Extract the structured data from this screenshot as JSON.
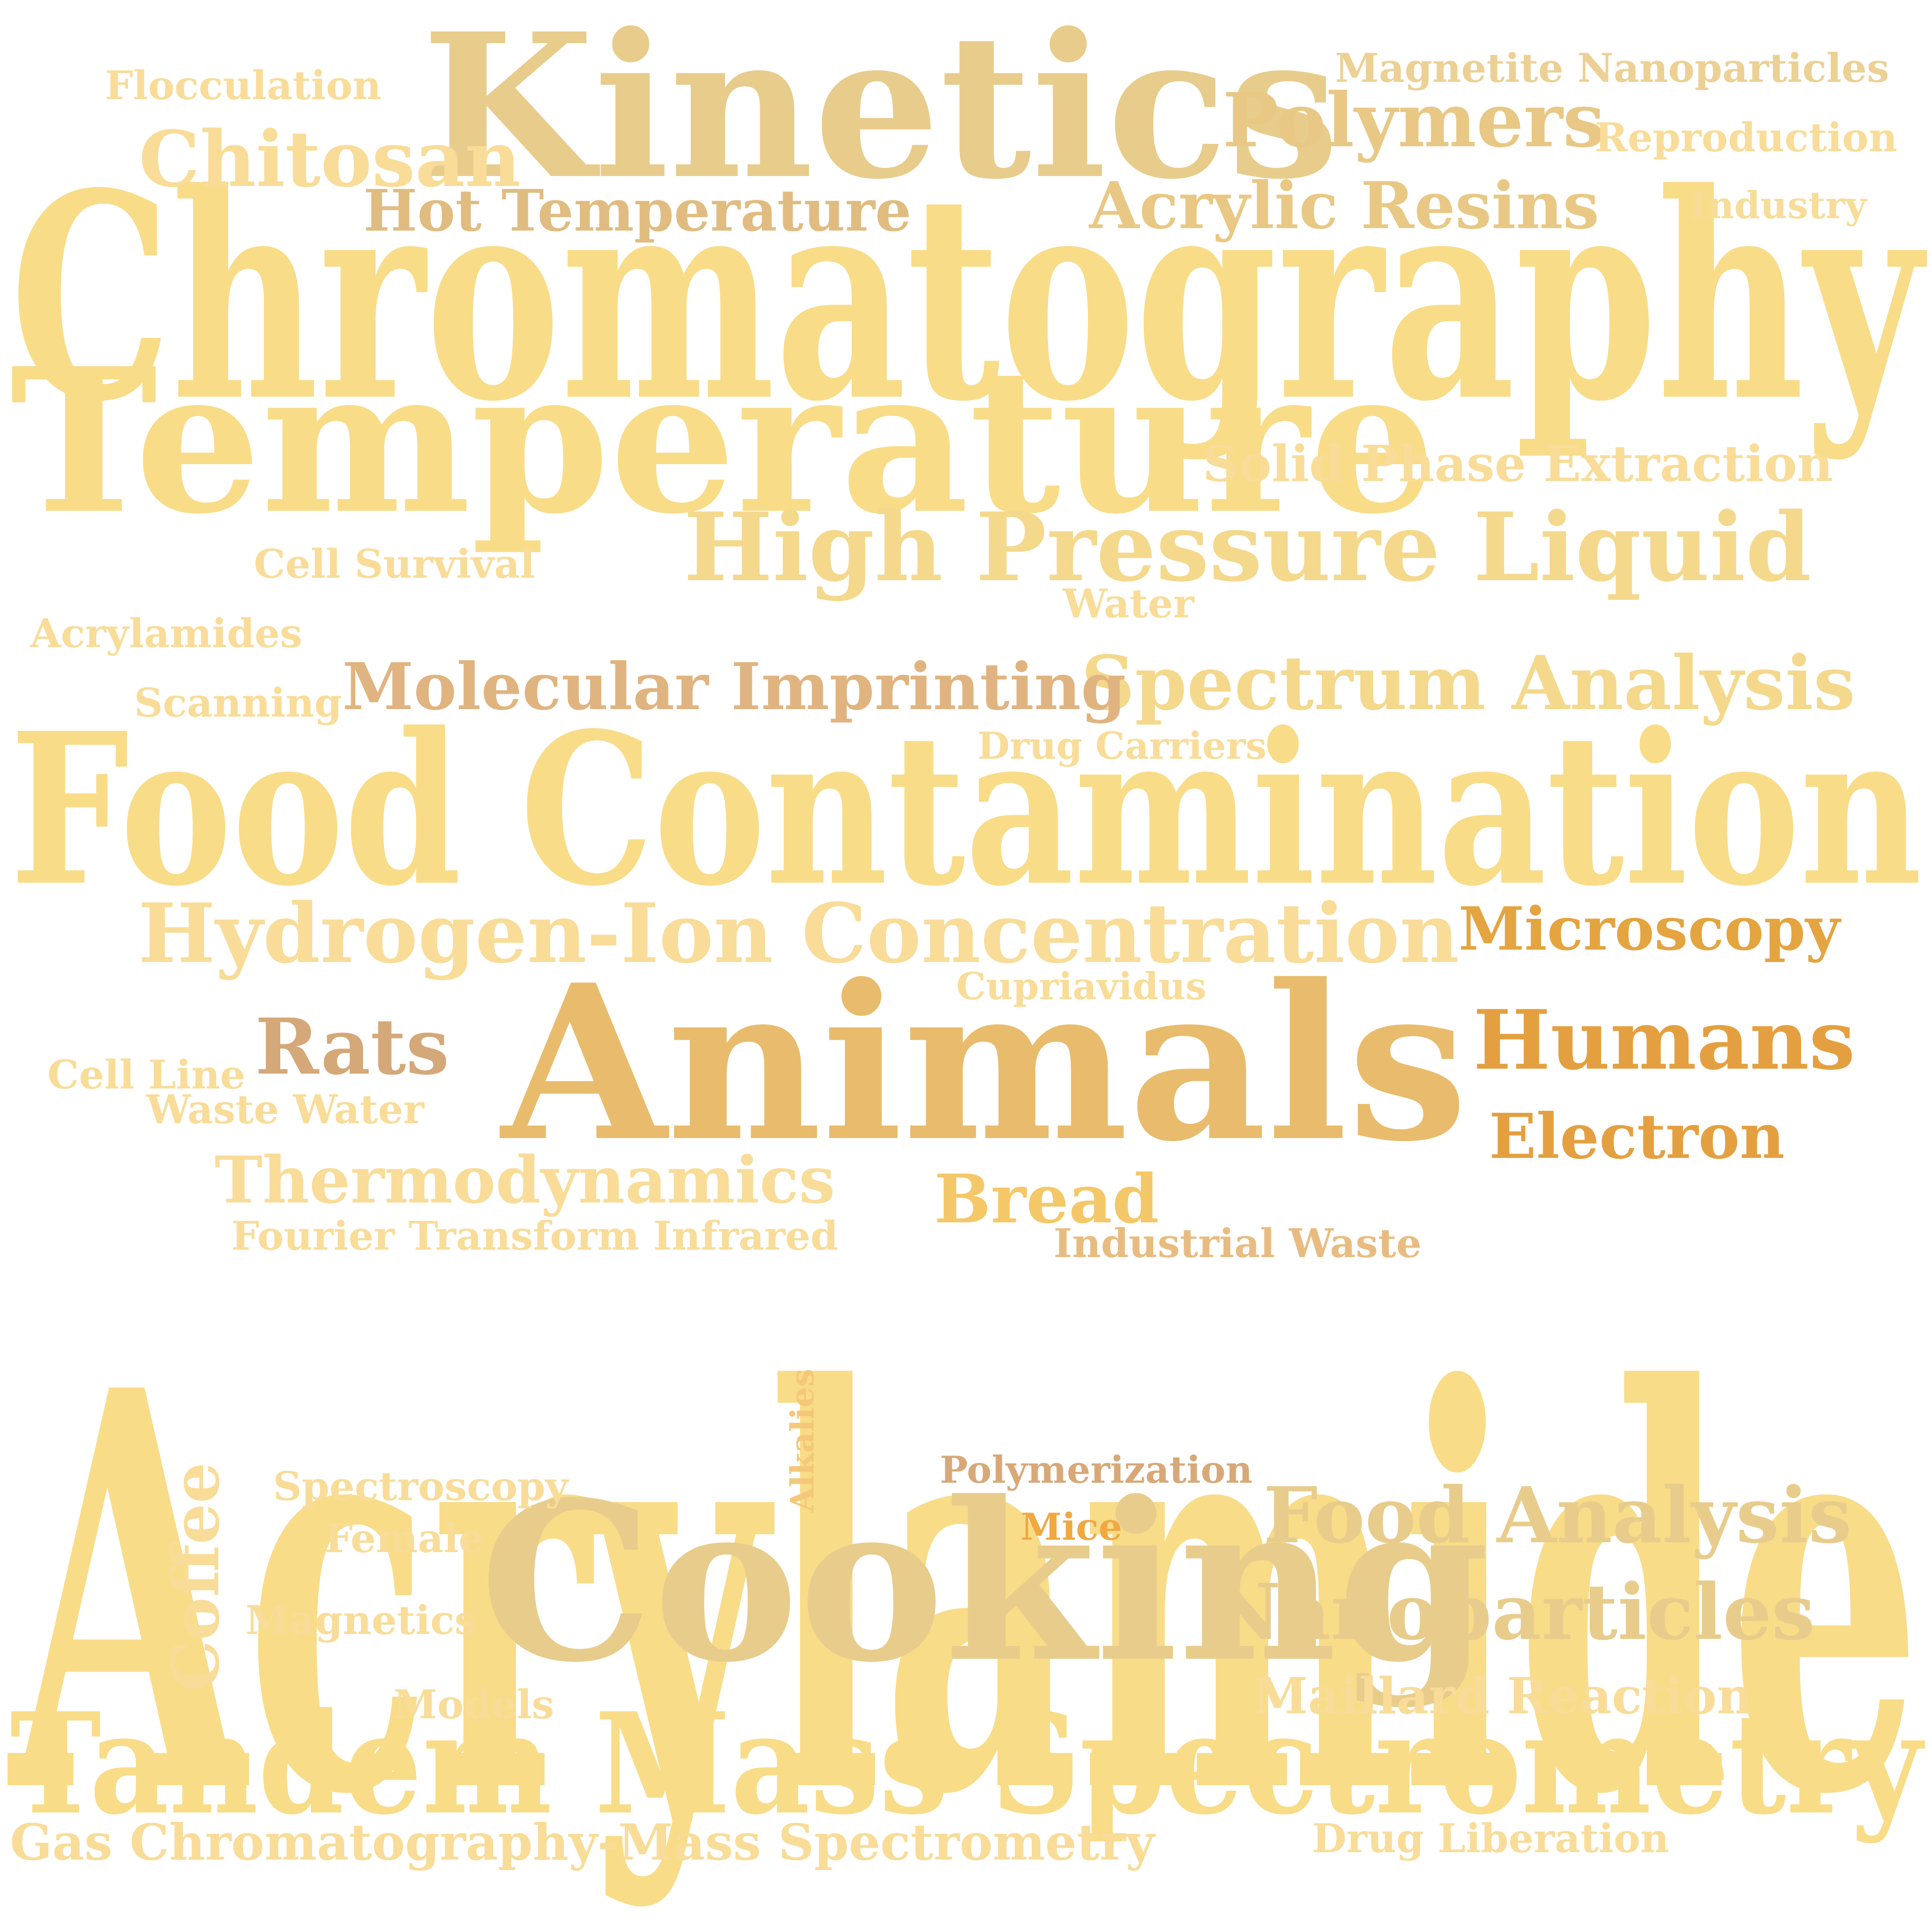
{
  "word_cloud": {
    "words": [
      {
        "text": "Acrylamide",
        "color": "#f8dc88",
        "weight": 1.0
      },
      {
        "text": "Chromatography",
        "color": "#f8dc88",
        "weight": 0.92
      },
      {
        "text": "Food Contamination",
        "color": "#f8dc88",
        "weight": 0.76
      },
      {
        "text": "Temperature",
        "color": "#f8dc88",
        "weight": 0.74
      },
      {
        "text": "Tandem Mass Spectrometry",
        "color": "#f8dc88",
        "weight": 0.66
      },
      {
        "text": "Kinetics",
        "color": "#e8cc8c",
        "weight": 0.7
      },
      {
        "text": "Animals",
        "color": "#e8bc6c",
        "weight": 0.72
      },
      {
        "text": "Cooking",
        "color": "#e8cc8c",
        "weight": 0.74
      },
      {
        "text": "High Pressure Liquid",
        "color": "#f4d88c",
        "weight": 0.42
      },
      {
        "text": "Hydrogen-Ion Concentration",
        "color": "#f8dc98",
        "weight": 0.38
      },
      {
        "text": "Spectrum Analysis",
        "color": "#f4d88c",
        "weight": 0.34
      },
      {
        "text": "Molecular Imprinting",
        "color": "#e0b480",
        "weight": 0.3
      },
      {
        "text": "Polymers",
        "color": "#e8c884",
        "weight": 0.34
      },
      {
        "text": "Acrylic Resins",
        "color": "#e8c884",
        "weight": 0.3
      },
      {
        "text": "Hot Temperature",
        "color": "#e0bc80",
        "weight": 0.26
      },
      {
        "text": "Chitosan",
        "color": "#f8dc98",
        "weight": 0.34
      },
      {
        "text": "Microscopy",
        "color": "#e4a440",
        "weight": 0.3
      },
      {
        "text": "Humans",
        "color": "#e4a040",
        "weight": 0.36
      },
      {
        "text": "Electron",
        "color": "#e4a040",
        "weight": 0.28
      },
      {
        "text": "Rats",
        "color": "#d4a878",
        "weight": 0.36
      },
      {
        "text": "Thermodynamics",
        "color": "#f8dc98",
        "weight": 0.3
      },
      {
        "text": "Food Analysis",
        "color": "#e8cc8c",
        "weight": 0.34
      },
      {
        "text": "Nanoparticles",
        "color": "#e8cc8c",
        "weight": 0.34
      },
      {
        "text": "Bread",
        "color": "#f4c868",
        "weight": 0.3
      },
      {
        "text": "Coffee",
        "color": "#f8dc98",
        "weight": 0.3
      },
      {
        "text": "Maillard Reaction",
        "color": "#f8dc98",
        "weight": 0.22
      },
      {
        "text": "Solid Phase Extraction",
        "color": "#f8dc98",
        "weight": 0.22
      },
      {
        "text": "Gas Chromatography-Mass Spectrometry",
        "color": "#f8dc98",
        "weight": 0.22
      },
      {
        "text": "Magnetite Nanoparticles",
        "color": "#ecd094",
        "weight": 0.18
      },
      {
        "text": "Reproduction",
        "color": "#f8dc98",
        "weight": 0.18
      },
      {
        "text": "Industry",
        "color": "#f8dc98",
        "weight": 0.16
      },
      {
        "text": "Flocculation",
        "color": "#f8dc98",
        "weight": 0.18
      },
      {
        "text": "Cell Survival",
        "color": "#f8dc98",
        "weight": 0.18
      },
      {
        "text": "Water",
        "color": "#f8dc98",
        "weight": 0.18
      },
      {
        "text": "Acrylamides",
        "color": "#f8dc98",
        "weight": 0.18
      },
      {
        "text": "Scanning",
        "color": "#f8dc98",
        "weight": 0.18
      },
      {
        "text": "Drug Carriers",
        "color": "#f8dc98",
        "weight": 0.16
      },
      {
        "text": "Cupriavidus",
        "color": "#f8dc98",
        "weight": 0.16
      },
      {
        "text": "Cell Line",
        "color": "#f8dc98",
        "weight": 0.18
      },
      {
        "text": "Waste Water",
        "color": "#f8dc98",
        "weight": 0.18
      },
      {
        "text": "Fourier Transform Infrared",
        "color": "#f8dc98",
        "weight": 0.18
      },
      {
        "text": "Industrial Waste",
        "color": "#e8bc80",
        "weight": 0.18
      },
      {
        "text": "Alkalies",
        "color": "#f4c878",
        "weight": 0.18
      },
      {
        "text": "Polymerization",
        "color": "#d8a878",
        "weight": 0.18
      },
      {
        "text": "Mice",
        "color": "#f0a840",
        "weight": 0.18
      },
      {
        "text": "Spectroscopy",
        "color": "#f8dc98",
        "weight": 0.18
      },
      {
        "text": "Female",
        "color": "#f8dc98",
        "weight": 0.18
      },
      {
        "text": "Magnetics",
        "color": "#f8dc98",
        "weight": 0.18
      },
      {
        "text": "Models",
        "color": "#f8dc98",
        "weight": 0.18
      },
      {
        "text": "Drug Liberation",
        "color": "#f8dc98",
        "weight": 0.18
      }
    ]
  }
}
